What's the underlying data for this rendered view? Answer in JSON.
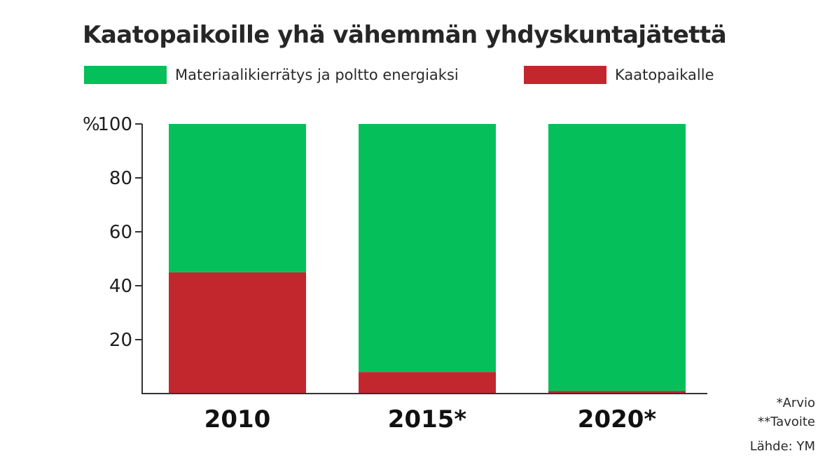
{
  "colors": {
    "green": "#05c05a",
    "red": "#c1272d",
    "axis": "#333333"
  },
  "chart_data": {
    "type": "bar",
    "stacked": true,
    "title": "Kaatopaikoille yhä vähemmän yhdyskuntajätettä",
    "categories": [
      "2010",
      "2015*",
      "2020*"
    ],
    "series": [
      {
        "name": "Kaatopaikalle",
        "color": "#c1272d",
        "values": [
          45,
          8,
          1
        ]
      },
      {
        "name": "Materiaalikierrätys ja poltto energiaksi",
        "color": "#05c05a",
        "values": [
          55,
          92,
          99
        ]
      }
    ],
    "yunit": "%",
    "ylim": [
      0,
      100
    ],
    "yticks": [
      20,
      40,
      60,
      80,
      100
    ],
    "legend_position": "top",
    "grid": false
  },
  "legend": {
    "green_label": "Materiaalikierrätys ja poltto energiaksi",
    "red_label": "Kaatopaikalle"
  },
  "notes": {
    "estimate": "*Arvio",
    "target": "**Tavoite",
    "source": "Lähde: YM"
  }
}
